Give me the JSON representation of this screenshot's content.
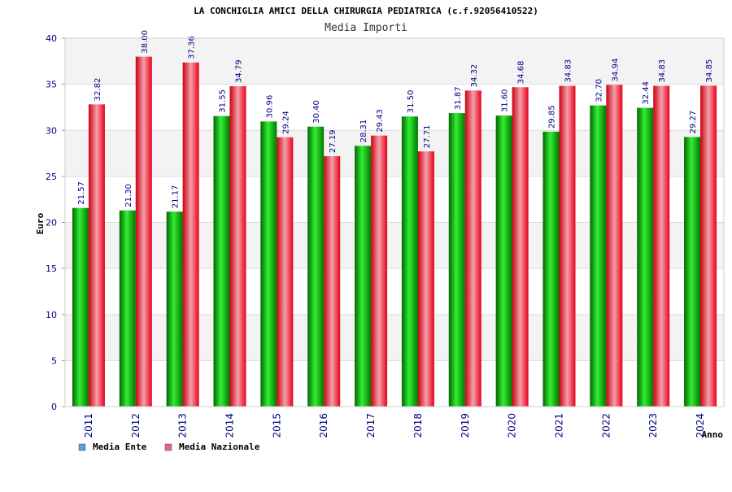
{
  "chart_data": {
    "type": "bar",
    "title": "LA CONCHIGLIA AMICI DELLA CHIRURGIA PEDIATRICA (c.f.92056410522)",
    "subtitle": "Media Importi",
    "xlabel": "Anno",
    "ylabel": "Euro",
    "ylim": [
      0,
      40
    ],
    "yticks": [
      "0",
      "5",
      "10",
      "15",
      "20",
      "25",
      "30",
      "35",
      "40"
    ],
    "categories": [
      "2011",
      "2012",
      "2013",
      "2014",
      "2015",
      "2016",
      "2017",
      "2018",
      "2019",
      "2020",
      "2021",
      "2022",
      "2023",
      "2024"
    ],
    "series": [
      {
        "name": "Media Ente",
        "color": "#00aa00",
        "legend_color": "#5b9bd5",
        "values": [
          21.57,
          21.3,
          21.17,
          31.55,
          30.96,
          30.4,
          28.31,
          31.5,
          31.87,
          31.6,
          29.85,
          32.7,
          32.44,
          29.27
        ],
        "labels": [
          "21.57",
          "21.30",
          "21.17",
          "31.55",
          "30.96",
          "30.40",
          "28.31",
          "31.50",
          "31.87",
          "31.60",
          "29.85",
          "32.70",
          "32.44",
          "29.27"
        ]
      },
      {
        "name": "Media Nazionale",
        "color": "#e8001c",
        "legend_color": "#d66b8c",
        "values": [
          32.82,
          38.0,
          37.36,
          34.79,
          29.24,
          27.19,
          29.43,
          27.71,
          34.32,
          34.68,
          34.83,
          34.94,
          34.83,
          34.85
        ],
        "labels": [
          "32.82",
          "38.00",
          "37.36",
          "34.79",
          "29.24",
          "27.19",
          "29.43",
          "27.71",
          "34.32",
          "34.68",
          "34.83",
          "34.94",
          "34.83",
          "34.85"
        ]
      }
    ],
    "grid": true,
    "legend_position": "bottom-left"
  }
}
